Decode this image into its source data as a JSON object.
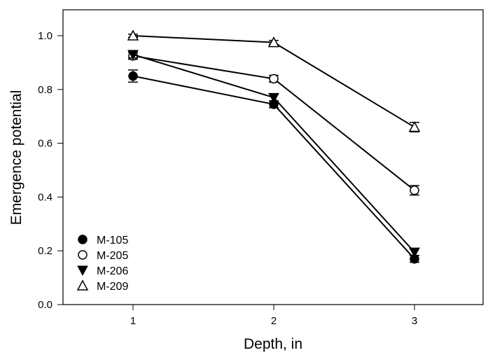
{
  "chart_data": {
    "type": "line",
    "title": "",
    "xlabel": "Depth, in",
    "ylabel": "Emergence potential",
    "xlim": [
      0.5,
      3.5
    ],
    "ylim": [
      0.0,
      1.1
    ],
    "xticks": [
      "1",
      "2",
      "3"
    ],
    "yticks": [
      "0.0",
      "0.2",
      "0.4",
      "0.6",
      "0.8",
      "1.0"
    ],
    "x": [
      1,
      2,
      3
    ],
    "grid": false,
    "legend_position": "bottom-left",
    "series": [
      {
        "name": "M-105",
        "marker": "filled-circle",
        "values": [
          0.85,
          0.745,
          0.17
        ],
        "errors": [
          0.02,
          0.01,
          0.01
        ]
      },
      {
        "name": "M-205",
        "marker": "open-circle",
        "values": [
          0.925,
          0.84,
          0.425
        ],
        "errors": [
          0.01,
          0.01,
          0.015
        ]
      },
      {
        "name": "M-206",
        "marker": "filled-triangle-down",
        "values": [
          0.93,
          0.77,
          0.195
        ],
        "errors": [
          0.01,
          0.01,
          0.01
        ]
      },
      {
        "name": "M-209",
        "marker": "open-triangle-up",
        "values": [
          1.0,
          0.975,
          0.66
        ],
        "errors": [
          0.003,
          0.005,
          0.015
        ]
      }
    ],
    "colors": {
      "line": "#000000",
      "background": "#ffffff"
    }
  }
}
